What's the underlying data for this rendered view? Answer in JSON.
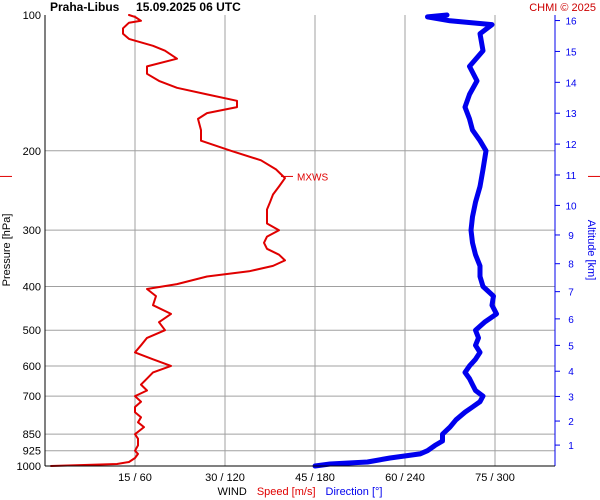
{
  "header": {
    "title": "Praha-Libus     15.09.2025 06 UTC",
    "credit": "CHMI © 2025"
  },
  "colors": {
    "speed": "#e00000",
    "direction": "#0000ee",
    "grid": "#a0a0a0",
    "text": "#000000",
    "credit": "#cc0000"
  },
  "chart_data": {
    "type": "line",
    "title": "Praha-Libus     15.09.2025 06 UTC",
    "ylabel_left": "Pressure [hPa]",
    "ylabel_right": "Altitude [km]",
    "y_scale": "log",
    "ylim": [
      1000,
      100
    ],
    "y_ticks": [
      100,
      200,
      300,
      400,
      500,
      600,
      700,
      850,
      925,
      1000
    ],
    "y_ticks_right": [
      1,
      2,
      3,
      4,
      5,
      6,
      7,
      8,
      9,
      10,
      11,
      12,
      13,
      14,
      15,
      16
    ],
    "x_label": {
      "prefix": "WIND",
      "speed": "Speed [m/s]",
      "direction": "Direction [°]"
    },
    "x_ticks": [
      {
        "speed": 15,
        "direction": 60,
        "label": "15 / 60"
      },
      {
        "speed": 30,
        "direction": 120,
        "label": "30 / 120"
      },
      {
        "speed": 45,
        "direction": 180,
        "label": "45 / 180"
      },
      {
        "speed": 60,
        "direction": 240,
        "label": "60 / 240"
      },
      {
        "speed": 75,
        "direction": 300,
        "label": "75 / 300"
      }
    ],
    "xlim_speed": [
      0,
      85
    ],
    "xlim_direction": [
      0,
      340
    ],
    "grid": true,
    "annotations": [
      {
        "text": "MXWS",
        "pressure": 228,
        "speed": 40
      }
    ],
    "series": [
      {
        "name": "Speed [m/s]",
        "unit": "m/s",
        "points": [
          [
            1000,
            1
          ],
          [
            990,
            12
          ],
          [
            980,
            14
          ],
          [
            960,
            15
          ],
          [
            940,
            15.5
          ],
          [
            925,
            15
          ],
          [
            900,
            15.5
          ],
          [
            870,
            15.5
          ],
          [
            850,
            15
          ],
          [
            820,
            16.5
          ],
          [
            800,
            15.5
          ],
          [
            780,
            16
          ],
          [
            760,
            15
          ],
          [
            740,
            15
          ],
          [
            720,
            16
          ],
          [
            700,
            15
          ],
          [
            680,
            17
          ],
          [
            660,
            16
          ],
          [
            640,
            17
          ],
          [
            620,
            18
          ],
          [
            600,
            21
          ],
          [
            580,
            18
          ],
          [
            560,
            15
          ],
          [
            540,
            16
          ],
          [
            520,
            17
          ],
          [
            500,
            20
          ],
          [
            480,
            19
          ],
          [
            460,
            21
          ],
          [
            440,
            18
          ],
          [
            420,
            18.5
          ],
          [
            405,
            17
          ],
          [
            395,
            22
          ],
          [
            380,
            27
          ],
          [
            370,
            34
          ],
          [
            360,
            38
          ],
          [
            350,
            40
          ],
          [
            340,
            39
          ],
          [
            330,
            37
          ],
          [
            320,
            36.5
          ],
          [
            310,
            37
          ],
          [
            300,
            39
          ],
          [
            290,
            37
          ],
          [
            280,
            37
          ],
          [
            270,
            37
          ],
          [
            260,
            37.5
          ],
          [
            250,
            38
          ],
          [
            240,
            39
          ],
          [
            230,
            40
          ],
          [
            220,
            38.5
          ],
          [
            210,
            36
          ],
          [
            200,
            31
          ],
          [
            190,
            26
          ],
          [
            180,
            26
          ],
          [
            170,
            25.5
          ],
          [
            165,
            27
          ],
          [
            160,
            32
          ],
          [
            155,
            32
          ],
          [
            150,
            27
          ],
          [
            145,
            22
          ],
          [
            140,
            19
          ],
          [
            135,
            17
          ],
          [
            130,
            17
          ],
          [
            125,
            22
          ],
          [
            120,
            20
          ],
          [
            117,
            18
          ],
          [
            113,
            14
          ],
          [
            110,
            13
          ],
          [
            107,
            13
          ],
          [
            104,
            14
          ],
          [
            103,
            16
          ],
          [
            101,
            15
          ],
          [
            100,
            14
          ]
        ]
      },
      {
        "name": "Direction [°]",
        "unit": "deg",
        "points": [
          [
            1000,
            180
          ],
          [
            990,
            190
          ],
          [
            980,
            215
          ],
          [
            960,
            230
          ],
          [
            940,
            250
          ],
          [
            925,
            255
          ],
          [
            900,
            260
          ],
          [
            880,
            265
          ],
          [
            860,
            265
          ],
          [
            850,
            265
          ],
          [
            820,
            270
          ],
          [
            790,
            274
          ],
          [
            760,
            280
          ],
          [
            740,
            285
          ],
          [
            720,
            290
          ],
          [
            700,
            292
          ],
          [
            680,
            287
          ],
          [
            660,
            285
          ],
          [
            640,
            283
          ],
          [
            620,
            280
          ],
          [
            600,
            283
          ],
          [
            580,
            287
          ],
          [
            560,
            290
          ],
          [
            540,
            287
          ],
          [
            520,
            289
          ],
          [
            500,
            287
          ],
          [
            480,
            293
          ],
          [
            460,
            301
          ],
          [
            440,
            298
          ],
          [
            420,
            299
          ],
          [
            400,
            292
          ],
          [
            380,
            290
          ],
          [
            360,
            290
          ],
          [
            340,
            287
          ],
          [
            320,
            285
          ],
          [
            300,
            284
          ],
          [
            280,
            285
          ],
          [
            260,
            287
          ],
          [
            240,
            290
          ],
          [
            220,
            292
          ],
          [
            200,
            294
          ],
          [
            190,
            290
          ],
          [
            180,
            285
          ],
          [
            170,
            283
          ],
          [
            160,
            280
          ],
          [
            150,
            283
          ],
          [
            140,
            288
          ],
          [
            130,
            283
          ],
          [
            120,
            292
          ],
          [
            110,
            290
          ],
          [
            105,
            298
          ],
          [
            103,
            270
          ],
          [
            101,
            255
          ],
          [
            100,
            268
          ]
        ]
      }
    ]
  }
}
